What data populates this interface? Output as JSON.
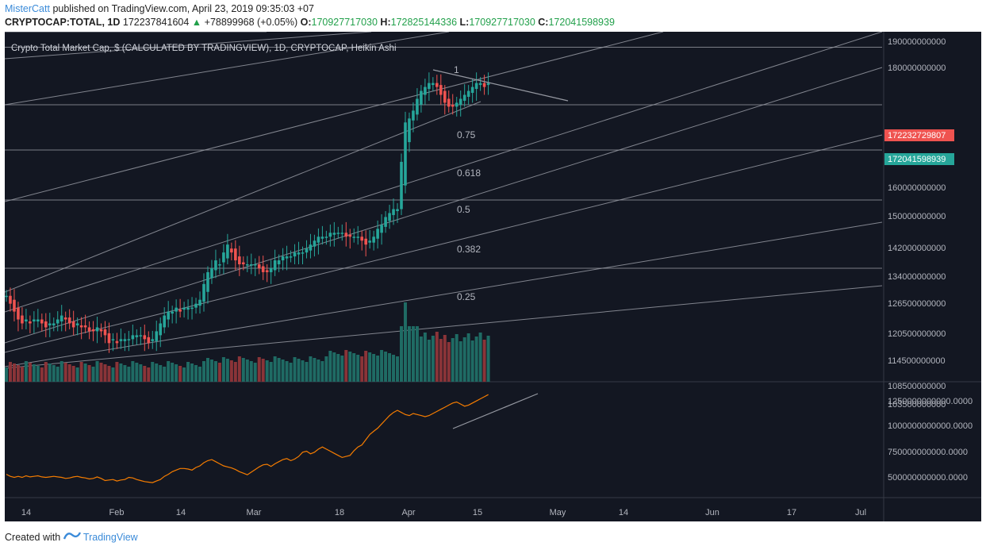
{
  "header": {
    "author": "MisterCatt",
    "published_text": "published on TradingView.com, April 23, 2019 09:35:03 +07",
    "symbol": "CRYPTOCAP:TOTAL, 1D",
    "last": "172237841604",
    "change_arrow": "▲",
    "change": "+78899968 (+0.05%)",
    "o_label": "O:",
    "o_value": "170927717030",
    "h_label": "H:",
    "h_value": "172825144336",
    "l_label": "L:",
    "l_value": "170927717030",
    "c_label": "C:",
    "c_value": "172041598939"
  },
  "footer": {
    "created_with": "Created with",
    "brand": "TradingView"
  },
  "colors": {
    "background": "#131722",
    "grid": "#1e222d",
    "up": "#26a69a",
    "down": "#ef5350",
    "vol_up": "#1f6b64",
    "vol_down": "#8a3438",
    "line": "#f57c00",
    "drawing": "#9598a1",
    "axis_text": "#b2b5be",
    "badge_red": "#ef5350",
    "badge_teal": "#26a69a"
  },
  "chart_data": {
    "type": "candlestick",
    "title": "Crypto Total Market Cap, $ (CALCULATED BY TRADINGVIEW), 1D, CRYPTOCAP, Heikin Ashi",
    "x_tick_labels": [
      "14",
      "Feb",
      "14",
      "Mar",
      "18",
      "Apr",
      "15",
      "May",
      "14",
      "Jun",
      "17",
      "Jul"
    ],
    "price_axis_labels": [
      "190000000000",
      "180000000000",
      "172232729807",
      "172041598939",
      "160000000000",
      "150000000000",
      "142000000000",
      "134000000000",
      "126500000000",
      "120500000000",
      "114500000000",
      "108500000000",
      "103500000000"
    ],
    "price_badges": [
      {
        "label": "172232729807",
        "value": 172232729807,
        "color": "red"
      },
      {
        "label": "172041598939",
        "value": 172041598939,
        "color": "teal"
      }
    ],
    "close_series": [
      118,
      116,
      114,
      112,
      111,
      112,
      111,
      112,
      112,
      111,
      110,
      111,
      111,
      112,
      113,
      112,
      111,
      110,
      111,
      110,
      110,
      109,
      109,
      110,
      109,
      108,
      106,
      107,
      106,
      107,
      107,
      107,
      108,
      108,
      108,
      107,
      106,
      107,
      109,
      111,
      113,
      114,
      114,
      115,
      114,
      115,
      115,
      115,
      116,
      117,
      121,
      124,
      125,
      127,
      126,
      129,
      131,
      129,
      127,
      126,
      126,
      126,
      126,
      126,
      125,
      124,
      124,
      125,
      127,
      127,
      128,
      128,
      128,
      129,
      129,
      129,
      130,
      131,
      132,
      133,
      133,
      133,
      134,
      134,
      134,
      134,
      133,
      133,
      133,
      133,
      132,
      131,
      132,
      133,
      135,
      136,
      138,
      139,
      140,
      140,
      152,
      162,
      163,
      165,
      168,
      170,
      171,
      172,
      172,
      171,
      169,
      167,
      166,
      166,
      167,
      168,
      169,
      170,
      171,
      172,
      172,
      171,
      172
    ],
    "fib_fan_labels": [
      "1",
      "0.75",
      "0.618",
      "0.5",
      "0.382",
      "0.25"
    ],
    "indicator_axis_labels": [
      "1250000000000.0000",
      "1000000000000.0000",
      "750000000000.0000",
      "500000000000.0000"
    ],
    "indicator_values": [
      520,
      500,
      490,
      500,
      490,
      505,
      495,
      500,
      505,
      495,
      490,
      495,
      500,
      495,
      490,
      480,
      485,
      495,
      500,
      490,
      485,
      475,
      480,
      495,
      480,
      460,
      465,
      470,
      455,
      465,
      470,
      490,
      485,
      470,
      460,
      450,
      445,
      440,
      455,
      470,
      500,
      520,
      545,
      560,
      575,
      575,
      570,
      560,
      585,
      600,
      630,
      650,
      660,
      640,
      620,
      600,
      590,
      580,
      565,
      545,
      530,
      515,
      540,
      565,
      590,
      610,
      615,
      595,
      620,
      640,
      660,
      670,
      650,
      665,
      690,
      730,
      740,
      715,
      730,
      760,
      780,
      760,
      740,
      720,
      700,
      680,
      690,
      700,
      745,
      780,
      800,
      850,
      900,
      930,
      960,
      1000,
      1040,
      1080,
      1110,
      1130,
      1110,
      1090,
      1080,
      1100,
      1090,
      1080,
      1070,
      1080,
      1100,
      1120,
      1140,
      1160,
      1180,
      1200,
      1210,
      1190,
      1170,
      1180,
      1200,
      1220,
      1240,
      1260,
      1280
    ]
  }
}
